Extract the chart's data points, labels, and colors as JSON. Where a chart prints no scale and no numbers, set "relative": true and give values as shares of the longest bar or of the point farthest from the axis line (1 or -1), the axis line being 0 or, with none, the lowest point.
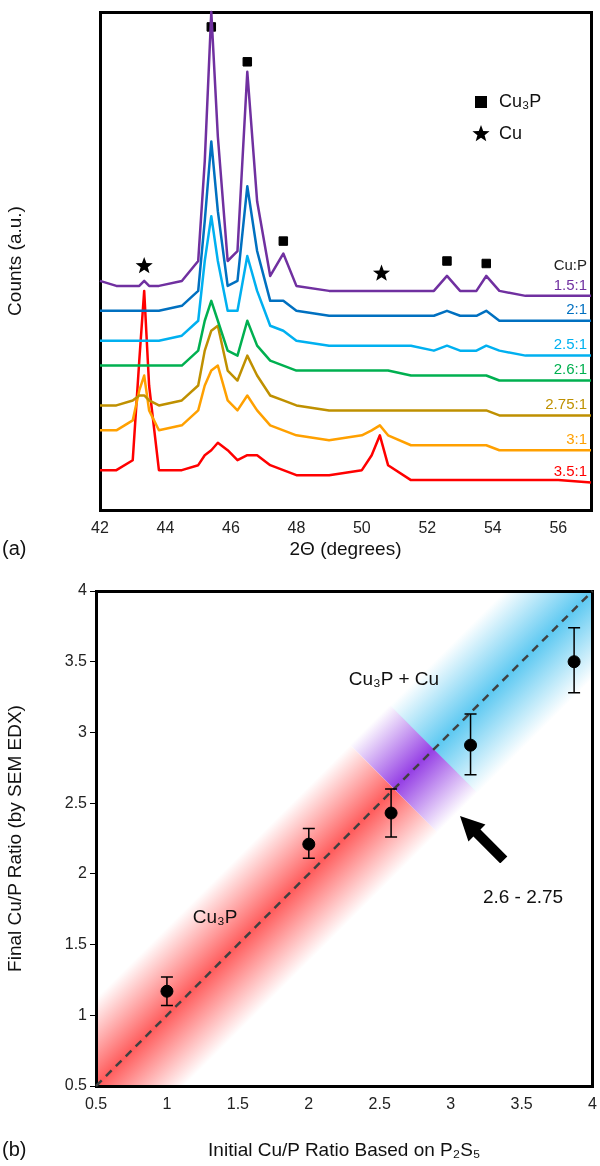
{
  "chart_data": [
    {
      "type": "line",
      "relative": true,
      "xlabel": "2Θ (degrees)",
      "ylabel": "Counts (a.u.)",
      "legend_title": "Cu:P",
      "legend": "top right",
      "xlim": [
        42,
        57
      ],
      "xticks": [
        42,
        44,
        46,
        48,
        50,
        52,
        54,
        56
      ],
      "x": [
        42,
        42.5,
        43,
        43.2,
        43.35,
        43.5,
        43.8,
        44.5,
        45,
        45.2,
        45.4,
        45.6,
        45.9,
        46.2,
        46.5,
        46.8,
        47.2,
        47.6,
        48,
        49,
        50,
        50.3,
        50.55,
        50.8,
        51.5,
        52.2,
        52.6,
        53,
        53.5,
        53.8,
        54.2,
        55,
        56,
        57
      ],
      "series": [
        {
          "name": "1.5:1",
          "color": "#7030a0",
          "values": [
            0.46,
            0.45,
            0.45,
            0.45,
            0.46,
            0.45,
            0.45,
            0.46,
            0.5,
            0.7,
            1.0,
            0.75,
            0.5,
            0.52,
            0.88,
            0.62,
            0.47,
            0.515,
            0.45,
            0.44,
            0.44,
            0.44,
            0.44,
            0.44,
            0.44,
            0.44,
            0.47,
            0.44,
            0.44,
            0.47,
            0.44,
            0.43,
            0.43,
            0.43
          ]
        },
        {
          "name": "2:1",
          "color": "#0070c0",
          "values": [
            0.4,
            0.4,
            0.4,
            0.4,
            0.4,
            0.4,
            0.4,
            0.41,
            0.44,
            0.58,
            0.74,
            0.6,
            0.45,
            0.46,
            0.65,
            0.52,
            0.42,
            0.42,
            0.4,
            0.39,
            0.39,
            0.39,
            0.39,
            0.39,
            0.39,
            0.39,
            0.4,
            0.39,
            0.39,
            0.4,
            0.38,
            0.38,
            0.38,
            0.38
          ]
        },
        {
          "name": "2.5:1",
          "color": "#00b0f0",
          "values": [
            0.34,
            0.34,
            0.34,
            0.34,
            0.34,
            0.34,
            0.34,
            0.35,
            0.38,
            0.5,
            0.59,
            0.5,
            0.4,
            0.4,
            0.51,
            0.44,
            0.37,
            0.36,
            0.34,
            0.33,
            0.33,
            0.33,
            0.33,
            0.33,
            0.33,
            0.32,
            0.33,
            0.32,
            0.32,
            0.33,
            0.32,
            0.31,
            0.31,
            0.31
          ]
        },
        {
          "name": "2.6:1",
          "color": "#00b050",
          "values": [
            0.29,
            0.29,
            0.29,
            0.29,
            0.29,
            0.29,
            0.29,
            0.29,
            0.32,
            0.38,
            0.42,
            0.38,
            0.32,
            0.31,
            0.38,
            0.33,
            0.3,
            0.29,
            0.28,
            0.28,
            0.28,
            0.28,
            0.28,
            0.28,
            0.27,
            0.27,
            0.27,
            0.27,
            0.27,
            0.27,
            0.26,
            0.26,
            0.26,
            0.26
          ]
        },
        {
          "name": "2.75:1",
          "color": "#bf9000",
          "values": [
            0.21,
            0.21,
            0.22,
            0.23,
            0.23,
            0.22,
            0.21,
            0.22,
            0.25,
            0.32,
            0.36,
            0.37,
            0.28,
            0.26,
            0.31,
            0.27,
            0.23,
            0.22,
            0.21,
            0.2,
            0.2,
            0.2,
            0.2,
            0.2,
            0.2,
            0.2,
            0.2,
            0.2,
            0.2,
            0.2,
            0.19,
            0.19,
            0.19,
            0.19
          ]
        },
        {
          "name": "3:1",
          "color": "#ffa000",
          "values": [
            0.16,
            0.16,
            0.18,
            0.24,
            0.27,
            0.2,
            0.16,
            0.17,
            0.2,
            0.25,
            0.28,
            0.29,
            0.22,
            0.2,
            0.23,
            0.2,
            0.17,
            0.16,
            0.15,
            0.14,
            0.15,
            0.16,
            0.17,
            0.15,
            0.13,
            0.13,
            0.13,
            0.13,
            0.13,
            0.13,
            0.12,
            0.12,
            0.12,
            0.12
          ]
        },
        {
          "name": "3.5:1",
          "color": "#ff0000",
          "values": [
            0.08,
            0.08,
            0.1,
            0.3,
            0.44,
            0.25,
            0.08,
            0.08,
            0.09,
            0.11,
            0.12,
            0.135,
            0.12,
            0.1,
            0.11,
            0.11,
            0.09,
            0.08,
            0.07,
            0.07,
            0.08,
            0.11,
            0.15,
            0.09,
            0.06,
            0.06,
            0.06,
            0.06,
            0.06,
            0.06,
            0.06,
            0.06,
            0.06,
            0.055
          ]
        },
        {
          "type": "scatter",
          "name": "Cu₃P",
          "color": "#000000",
          "marker": "square",
          "x": [
            45.4,
            46.5,
            47.6,
            52.6,
            53.8
          ],
          "values": [
            0.97,
            0.9,
            0.54,
            0.5,
            0.495
          ]
        },
        {
          "type": "scatter",
          "name": "Cu",
          "color": "#000000",
          "marker": "star",
          "x": [
            43.35,
            50.6
          ],
          "values": [
            0.49,
            0.475
          ]
        }
      ],
      "annotations": [
        "(a)"
      ]
    },
    {
      "type": "scatter",
      "xlabel": "Initial Cu/P Ratio Based on P₂S₅",
      "ylabel": "Final Cu/P Ratio (by SEM EDX)",
      "xlim": [
        0.5,
        4
      ],
      "ylim": [
        0.5,
        4
      ],
      "xticks": [
        0.5,
        1,
        1.5,
        2,
        2.5,
        3,
        3.5,
        4
      ],
      "yticks": [
        0.5,
        1,
        1.5,
        2,
        2.5,
        3,
        3.5,
        4
      ],
      "series": [
        {
          "type": "scatter",
          "color": "#000000",
          "marker": "circle",
          "x": [
            1,
            2,
            2.58,
            3.14,
            3.87
          ],
          "values": [
            1.17,
            2.21,
            2.43,
            2.91,
            3.5
          ],
          "errors": [
            [
              1.07,
              1.27
            ],
            [
              2.11,
              2.32
            ],
            [
              2.26,
              2.6
            ],
            [
              2.7,
              3.13
            ],
            [
              3.28,
              3.74
            ]
          ]
        },
        {
          "type": "line",
          "color": "#404040",
          "line_style": "dashed",
          "marker": "none",
          "x": [
            0.5,
            4
          ],
          "values": [
            0.5,
            4
          ]
        }
      ],
      "annotations": [
        "Cu₃P",
        "Cu₃P + Cu",
        "2.6 - 2.75",
        "(b)"
      ]
    }
  ]
}
